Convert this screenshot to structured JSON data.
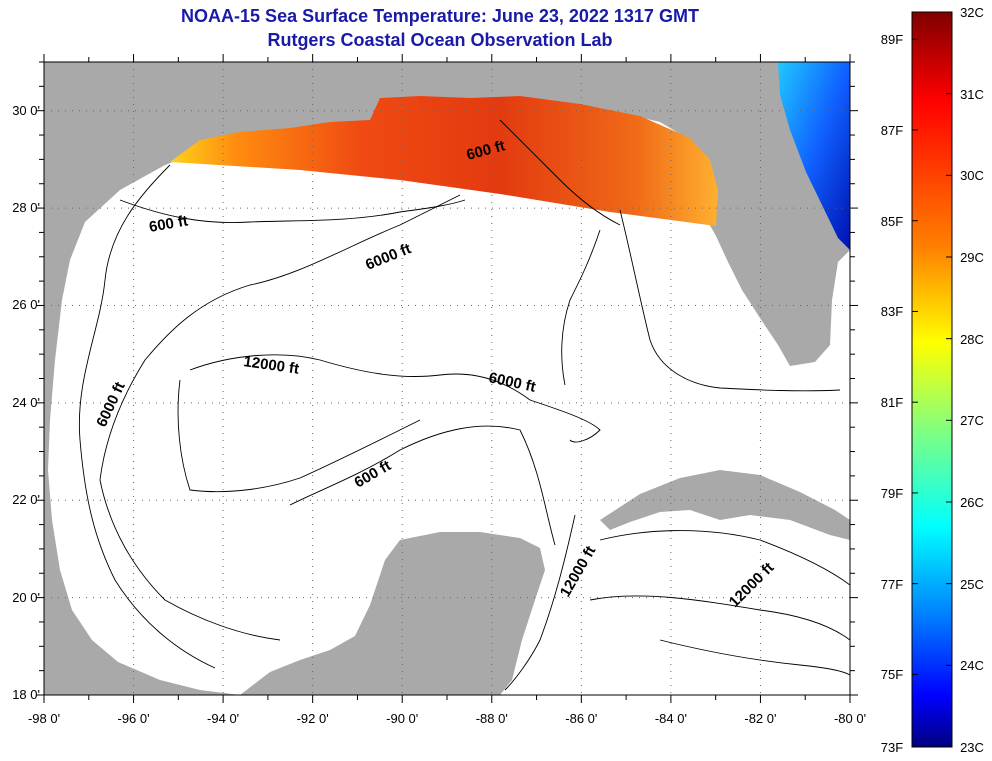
{
  "title": {
    "line1": "NOAA-15 Sea Surface Temperature:  June 23, 2022 1317 GMT",
    "line2": "Rutgers Coastal Ocean Observation Lab"
  },
  "map": {
    "lat_labels": [
      "30 0'",
      "28 0'",
      "26 0'",
      "24 0'",
      "22 0'",
      "20 0'",
      "18 0'"
    ],
    "lon_labels": [
      "-98 0'",
      "-96 0'",
      "-94 0'",
      "-92 0'",
      "-90 0'",
      "-88 0'",
      "-86 0'",
      "-84 0'",
      "-82 0'",
      "-80 0'"
    ],
    "contour_labels": [
      "600 ft",
      "600 ft",
      "600 ft",
      "6000 ft",
      "6000 ft",
      "6000 ft",
      "12000 ft",
      "12000 ft",
      "12000 ft"
    ],
    "colors": {
      "land": "#a9a9a9",
      "ocean_no_data": "#ffffff",
      "contour": "#000000",
      "grid": "#555555"
    }
  },
  "colorbar": {
    "fahrenheit_labels": [
      "89F",
      "87F",
      "85F",
      "83F",
      "81F",
      "79F",
      "77F",
      "75F",
      "73F"
    ],
    "celsius_labels": [
      "32C",
      "31C",
      "30C",
      "29C",
      "28C",
      "27C",
      "26C",
      "25C",
      "24C",
      "23C"
    ],
    "range_c": [
      23,
      32
    ],
    "colormap": "jet"
  }
}
